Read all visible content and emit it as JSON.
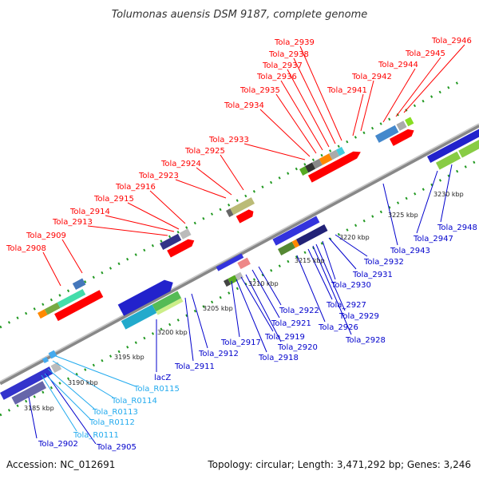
{
  "title": "Tolumonas auensis DSM 9187, complete genome",
  "footer": {
    "accession": "Accession: NC_012691",
    "topology": "Topology: circular; Length: 3,471,292 bp; Genes: 3,246"
  },
  "colors": {
    "red_label": "#ff0000",
    "blue_label": "#0000cc",
    "cyan_label": "#22aaee",
    "track": "#999999",
    "tick": "#229922"
  },
  "scale_labels": [
    "3185 kbp",
    "3190 kbp",
    "3195 kbp",
    "3200 kbp",
    "3205 kbp",
    "3210 kbp",
    "3215 kbp",
    "3220 kbp",
    "3225 kbp",
    "3230 kbp"
  ],
  "upper_labels": [
    "Tola_2908",
    "Tola_2909",
    "Tola_2913",
    "Tola_2914",
    "Tola_2915",
    "Tola_2916",
    "Tola_2923",
    "Tola_2924",
    "Tola_2925",
    "Tola_2933",
    "Tola_2934",
    "Tola_2935",
    "Tola_2936",
    "Tola_2937",
    "Tola_2938",
    "Tola_2939",
    "Tola_2941",
    "Tola_2942",
    "Tola_2944",
    "Tola_2945",
    "Tola_2946"
  ],
  "lower_labels": [
    "Tola_2902",
    "Tola_2905",
    "Tola_2911",
    "Tola_2912",
    "Tola_2917",
    "Tola_2918",
    "Tola_2919",
    "Tola_2920",
    "Tola_2921",
    "Tola_2922",
    "Tola_2926",
    "Tola_2927",
    "Tola_2928",
    "Tola_2929",
    "Tola_2930",
    "Tola_2931",
    "Tola_2932",
    "Tola_2943",
    "Tola_2947",
    "Tola_2948",
    "lacZ"
  ],
  "rna_labels": [
    "Tola_R0111",
    "Tola_R0112",
    "Tola_R0113",
    "Tola_R0114",
    "Tola_R0115"
  ]
}
